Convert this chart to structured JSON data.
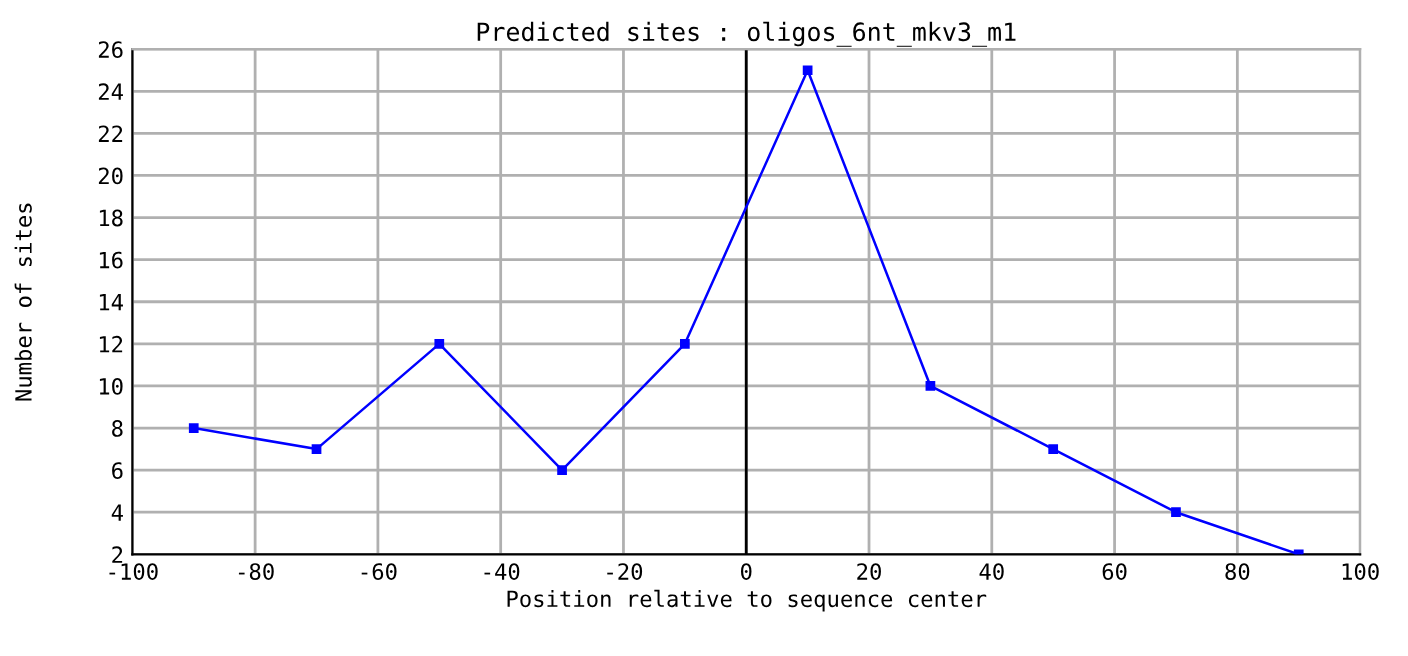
{
  "chart_data": {
    "type": "line",
    "title": "Predicted sites : oligos_6nt_mkv3_m1",
    "xlabel": "Position relative to sequence center",
    "ylabel": "Number of sites",
    "x": [
      -90,
      -70,
      -50,
      -30,
      -10,
      10,
      30,
      50,
      70,
      90
    ],
    "series": [
      {
        "color": "#0000ff",
        "values": [
          8,
          7,
          12,
          6,
          12,
          25,
          10,
          7,
          4,
          2
        ]
      }
    ],
    "xlim": [
      -100,
      100
    ],
    "xticks": [
      -100,
      -80,
      -60,
      -40,
      -20,
      0,
      20,
      40,
      60,
      80,
      100
    ],
    "ylim": [
      2,
      26
    ],
    "yticks": [
      2,
      4,
      6,
      8,
      10,
      12,
      14,
      16,
      18,
      20,
      22,
      24,
      26
    ],
    "ref_lines": [
      {
        "axis": "x",
        "value": 0,
        "color": "#000000"
      }
    ],
    "grid": true,
    "marker": "square",
    "line_style": "solid"
  }
}
